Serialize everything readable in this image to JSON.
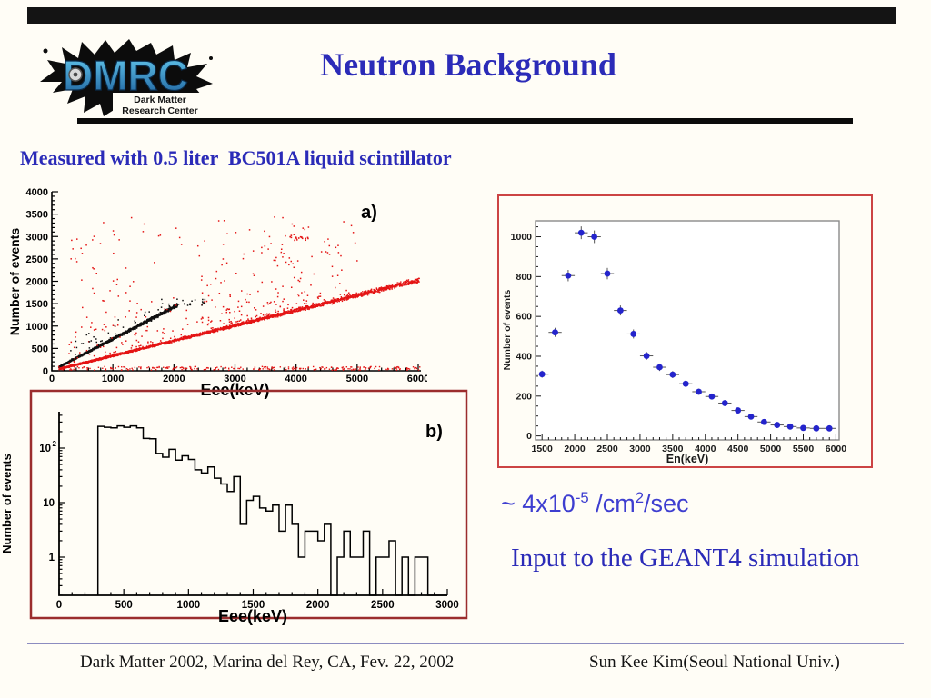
{
  "slide": {
    "title": "Neutron Background",
    "subtitle": "Measured with 0.5 liter  BC501A liquid scintillator",
    "logo": {
      "acronym": "DMRC",
      "tagline_line1": "Dark Matter",
      "tagline_line2": "Research Center"
    },
    "flux": {
      "base": "~ 4x10",
      "sup1": "-5",
      "mid": " /cm",
      "sup2": "2",
      "tail": "/sec"
    },
    "geant": "Input to the GEANT4 simulation",
    "footer": {
      "left": "Dark Matter 2002, Marina del Rey, CA, Fev. 22, 2002",
      "right": "Sun Kee Kim(Seoul National Univ.)"
    },
    "colors": {
      "accent_blue": "#2b2bb8",
      "flux_blue": "#3e3ed0",
      "scatter_red": "#e41414",
      "black": "#101010",
      "marker_blue": "#2424cc",
      "red_border": "#cc4444",
      "dark_red_border": "#9b2d2d",
      "footer_line": "#8c8cc0",
      "frame_gray": "#8a8a8a",
      "logo_letter_top": "#66ccf2",
      "logo_letter_bottom": "#1c5f9b"
    }
  },
  "chart_data": [
    {
      "id": "scatter_a",
      "type": "scatter",
      "corner_label": "a)",
      "xlabel": "Eee(keV)",
      "ylabel": "Number of events",
      "xlim": [
        0,
        6000
      ],
      "ylim": [
        0,
        4000
      ],
      "x_major_ticks": [
        0,
        1000,
        2000,
        3000,
        4000,
        5000,
        6000
      ],
      "y_major_ticks": [
        0,
        500,
        1000,
        1500,
        2000,
        2500,
        3000,
        3500,
        4000
      ],
      "x_minor_step": 200,
      "y_minor_step": 100,
      "grid": false,
      "note": "two linear pulse-shape bands: black gamma band slope ~0.71 ending near 2000 keV, red neutron band slope ~0.34 extending to 6000 keV, diffuse red events above the bands and along the baseline",
      "series": [
        {
          "name": "black-band",
          "kind": "band",
          "color": "#101010",
          "x_range": [
            120,
            2060
          ],
          "slope": 0.71,
          "spread": 40,
          "n": 1700,
          "x_bias": 1.3
        },
        {
          "name": "red-band",
          "kind": "band",
          "color": "#e41414",
          "x_range": [
            120,
            6020
          ],
          "slope": 0.337,
          "spread": 52,
          "n": 2700,
          "x_bias": 1.25
        },
        {
          "name": "red-outliers",
          "kind": "outliers",
          "color": "#e41414",
          "x_range": [
            260,
            5000
          ],
          "slope": 0.337,
          "y_max": 3450,
          "n": 340,
          "pow": 2.1
        },
        {
          "name": "black-outliers",
          "kind": "outliers-black",
          "color": "#101010",
          "x_range": [
            260,
            2600
          ],
          "slope": 0.71,
          "y_max": 1600,
          "n": 80,
          "pow": 2.2
        },
        {
          "name": "red-baseline",
          "kind": "uniform",
          "color": "#e41414",
          "x_range": [
            100,
            6040
          ],
          "y_range": [
            15,
            95
          ],
          "n": 240
        },
        {
          "name": "red-clump",
          "kind": "clump",
          "color": "#e41414",
          "cx": 4050,
          "cy": 2970,
          "sx": 150,
          "sy": 60,
          "n": 16
        }
      ]
    },
    {
      "id": "hist_b",
      "type": "bar",
      "corner_label": "b)",
      "xlabel": "Eee(keV)",
      "ylabel": "Number of events",
      "xlim": [
        0,
        3000
      ],
      "ylog": true,
      "x_major_ticks": [
        0,
        500,
        1000,
        1500,
        2000,
        2500,
        3000
      ],
      "x_minor_step": 100,
      "y_major_ticks": [
        1,
        10,
        100
      ],
      "bin_width": 50,
      "first_bin_x": 300,
      "values": [
        250,
        240,
        235,
        255,
        240,
        255,
        235,
        150,
        148,
        80,
        68,
        95,
        60,
        72,
        62,
        40,
        35,
        45,
        28,
        22,
        16,
        30,
        4,
        11,
        13,
        8,
        7,
        9,
        3,
        9,
        4,
        1,
        3,
        3,
        2,
        4,
        0,
        1,
        3,
        1,
        1,
        3,
        0,
        1,
        1,
        2,
        0,
        1,
        0,
        1,
        1,
        0,
        0,
        0
      ]
    },
    {
      "id": "en_spectrum",
      "type": "scatter",
      "marker": "dot-with-errorbars",
      "xlabel": "En(keV)",
      "ylabel": "Number of events",
      "xlim": [
        1400,
        6050
      ],
      "ylim": [
        -20,
        1080
      ],
      "x_major_ticks": [
        1500,
        2000,
        2500,
        3000,
        3500,
        4000,
        4500,
        5000,
        5500,
        6000
      ],
      "y_major_ticks": [
        0,
        200,
        400,
        600,
        800,
        1000
      ],
      "x_minor_step": 100,
      "y_minor_step": 50,
      "xerr": 100,
      "x": [
        1500,
        1700,
        1900,
        2100,
        2300,
        2500,
        2700,
        2900,
        3100,
        3300,
        3500,
        3700,
        3900,
        4100,
        4300,
        4500,
        4700,
        4900,
        5100,
        5300,
        5500,
        5700,
        5900
      ],
      "y": [
        310,
        520,
        805,
        1020,
        1000,
        815,
        630,
        512,
        402,
        345,
        308,
        262,
        222,
        198,
        165,
        128,
        97,
        70,
        55,
        47,
        40,
        38,
        38
      ]
    }
  ]
}
